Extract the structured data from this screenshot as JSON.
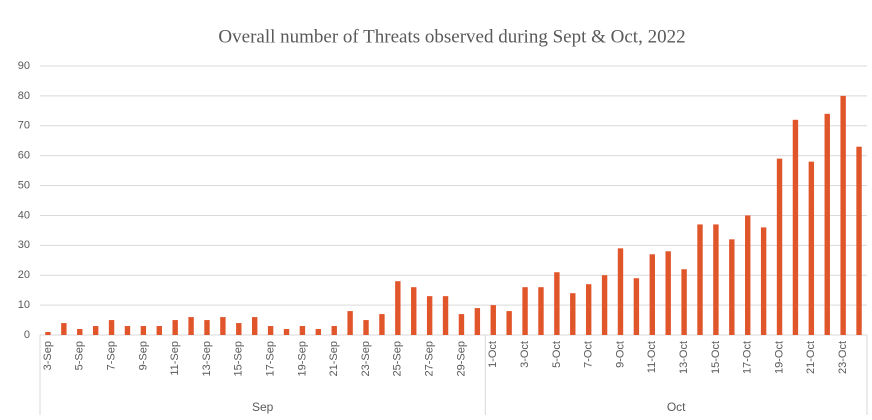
{
  "chart_data": {
    "type": "bar",
    "title": "Overall number of Threats observed during Sept & Oct, 2022",
    "categories": [
      "3-Sep",
      null,
      "5-Sep",
      null,
      "7-Sep",
      null,
      "9-Sep",
      null,
      "11-Sep",
      null,
      "13-Sep",
      null,
      "15-Sep",
      null,
      "17-Sep",
      null,
      "19-Sep",
      null,
      "21-Sep",
      null,
      "23-Sep",
      null,
      "25-Sep",
      null,
      "27-Sep",
      null,
      "29-Sep",
      null,
      "1-Oct",
      null,
      "3-Oct",
      null,
      "5-Oct",
      null,
      "7-Oct",
      null,
      "9-Oct",
      null,
      "11-Oct",
      null,
      "13-Oct",
      null,
      "15-Oct",
      null,
      "17-Oct",
      null,
      "19-Oct",
      null,
      "21-Oct",
      null,
      "23-Oct",
      null
    ],
    "values": [
      1,
      4,
      2,
      3,
      5,
      3,
      3,
      3,
      5,
      6,
      5,
      6,
      4,
      6,
      3,
      2,
      3,
      2,
      3,
      8,
      5,
      7,
      18,
      16,
      13,
      13,
      7,
      9,
      10,
      8,
      16,
      16,
      21,
      14,
      17,
      20,
      29,
      19,
      27,
      28,
      22,
      37,
      37,
      32,
      40,
      36,
      59,
      72,
      58,
      74,
      80,
      63
    ],
    "groups": [
      {
        "label": "Sep",
        "size": 28
      },
      {
        "label": "Oct",
        "size": 24
      }
    ],
    "color": "#e1552b",
    "ylim": [
      0,
      90
    ],
    "yticks": [
      0,
      10,
      20,
      30,
      40,
      50,
      60,
      70,
      80,
      90
    ],
    "grid": true
  }
}
